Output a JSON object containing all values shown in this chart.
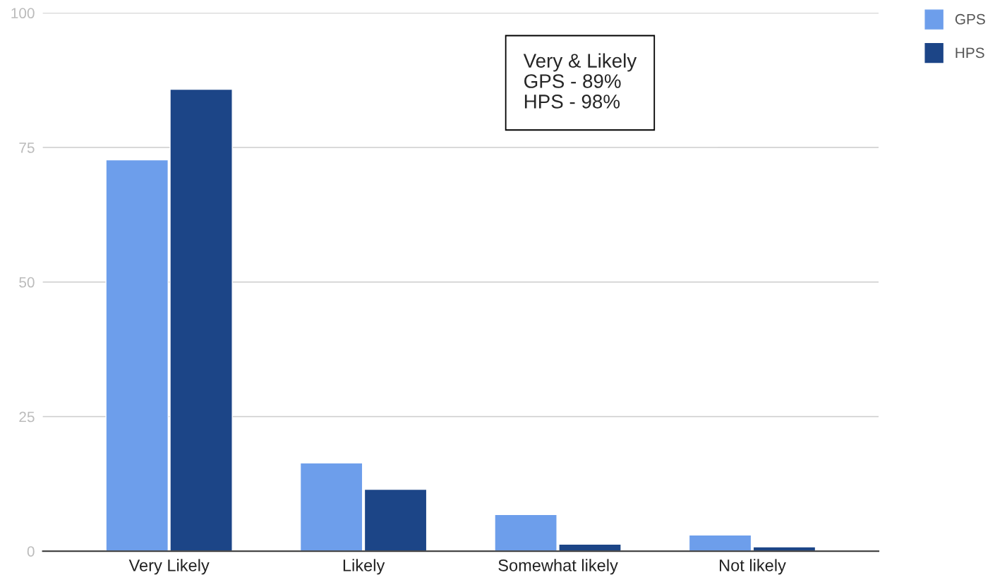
{
  "chart_data": {
    "type": "bar",
    "categories": [
      "Very Likely",
      "Likely",
      "Somewhat likely",
      "Not likely"
    ],
    "series": [
      {
        "name": "GPS",
        "color": "#6d9eeb",
        "values": [
          72.7,
          16.4,
          6.8,
          3.0
        ]
      },
      {
        "name": "HPS",
        "color": "#1c4587",
        "values": [
          85.8,
          11.5,
          1.3,
          0.8
        ]
      }
    ],
    "ylim": [
      0,
      100
    ],
    "yticks": [
      0,
      25,
      50,
      75,
      100
    ],
    "grid": "y",
    "legend": "top right",
    "annotations": [
      "Very & Likely\nGPS - 89%\nHPS - 98%"
    ]
  }
}
